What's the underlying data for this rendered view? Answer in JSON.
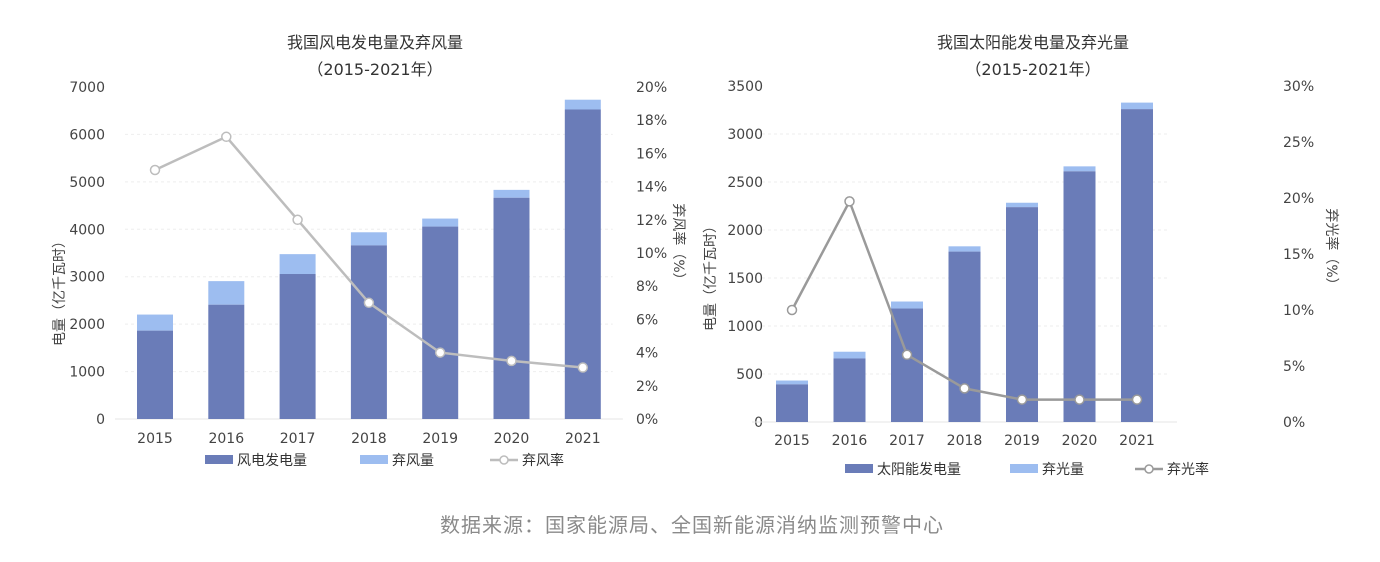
{
  "chart_data": [
    {
      "type": "bar",
      "stacked": true,
      "title": "我国风电发电量及弃风量",
      "subtitle": "（2015-2021年）",
      "categories": [
        "2015",
        "2016",
        "2017",
        "2018",
        "2019",
        "2020",
        "2021"
      ],
      "ylabel": "电量（亿千瓦时）",
      "ylim": [
        0,
        7000
      ],
      "yticks": [
        "0",
        "1000",
        "2000",
        "3000",
        "4000",
        "5000",
        "6000",
        "7000"
      ],
      "y2label": "弃风率（%）",
      "y2lim": [
        0,
        20
      ],
      "y2ticks": [
        "0%",
        "2%",
        "4%",
        "6%",
        "8%",
        "10%",
        "12%",
        "14%",
        "16%",
        "18%",
        "20%"
      ],
      "series": [
        {
          "name": "风电发电量",
          "kind": "bar",
          "axis": "left",
          "color": "#6a7cb8",
          "values": [
            1863,
            2410,
            3057,
            3660,
            4057,
            4665,
            6526
          ]
        },
        {
          "name": "弃风量",
          "kind": "bar",
          "axis": "left",
          "color": "#9dbdf0",
          "values": [
            339,
            497,
            419,
            277,
            169,
            166,
            206
          ]
        },
        {
          "name": "弃风率",
          "kind": "line",
          "axis": "right",
          "color": "#bdbdbd",
          "values": [
            15,
            17,
            12,
            7,
            4,
            3.5,
            3.1
          ]
        }
      ],
      "legend": "bottom"
    },
    {
      "type": "bar",
      "stacked": true,
      "title": "我国太阳能发电量及弃光量",
      "subtitle": "（2015-2021年）",
      "categories": [
        "2015",
        "2016",
        "2017",
        "2018",
        "2019",
        "2020",
        "2021"
      ],
      "ylabel": "电量（亿千瓦时）",
      "ylim": [
        0,
        3500
      ],
      "yticks": [
        "0",
        "500",
        "1000",
        "1500",
        "2000",
        "2500",
        "3000",
        "3500"
      ],
      "y2label": "弃光率（%）",
      "y2lim": [
        0,
        30
      ],
      "y2ticks": [
        "0%",
        "5%",
        "10%",
        "15%",
        "20%",
        "25%",
        "30%"
      ],
      "series": [
        {
          "name": "太阳能发电量",
          "kind": "bar",
          "axis": "left",
          "color": "#6a7cb8",
          "values": [
            392,
            662,
            1182,
            1775,
            2238,
            2611,
            3259
          ]
        },
        {
          "name": "弃光量",
          "kind": "bar",
          "axis": "left",
          "color": "#9dbdf0",
          "values": [
            40,
            70,
            73,
            55,
            46,
            52,
            68
          ]
        },
        {
          "name": "弃光率",
          "kind": "line",
          "axis": "right",
          "color": "#9a9a9a",
          "values": [
            10,
            19.7,
            6,
            3,
            2,
            2,
            2
          ]
        }
      ],
      "legend": "bottom"
    }
  ],
  "source": "数据来源：国家能源局、全国新能源消纳监测预警中心"
}
